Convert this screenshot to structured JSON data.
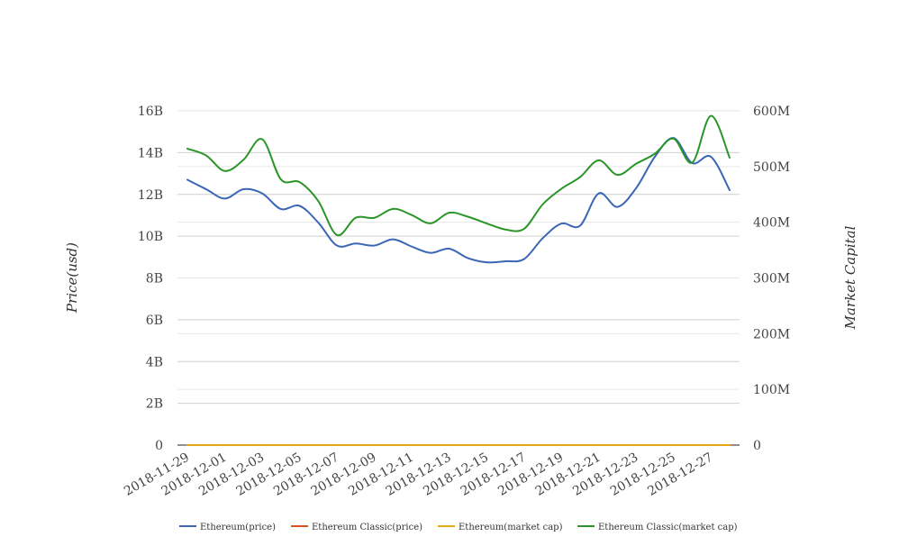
{
  "chart_data": {
    "type": "line",
    "title": "",
    "xlabel": "",
    "ylabel": "Price(usd)",
    "y2label": "Market Capital",
    "x": [
      "2018-11-29",
      "2018-11-30",
      "2018-12-01",
      "2018-12-02",
      "2018-12-03",
      "2018-12-04",
      "2018-12-05",
      "2018-12-06",
      "2018-12-07",
      "2018-12-08",
      "2018-12-09",
      "2018-12-10",
      "2018-12-11",
      "2018-12-12",
      "2018-12-13",
      "2018-12-14",
      "2018-12-15",
      "2018-12-16",
      "2018-12-17",
      "2018-12-18",
      "2018-12-19",
      "2018-12-20",
      "2018-12-21",
      "2018-12-22",
      "2018-12-23",
      "2018-12-24",
      "2018-12-25",
      "2018-12-26",
      "2018-12-27",
      "2018-12-28"
    ],
    "x_tick_labels": [
      "2018-11-29",
      "2018-12-01",
      "2018-12-03",
      "2018-12-05",
      "2018-12-07",
      "2018-12-09",
      "2018-12-11",
      "2018-12-13",
      "2018-12-15",
      "2018-12-17",
      "2018-12-19",
      "2018-12-21",
      "2018-12-23",
      "2018-12-25",
      "2018-12-27"
    ],
    "ylim": [
      0,
      16000000000
    ],
    "y_ticks": [
      0,
      2000000000,
      4000000000,
      6000000000,
      8000000000,
      10000000000,
      12000000000,
      14000000000,
      16000000000
    ],
    "y_tick_labels": [
      "0",
      "2B",
      "4B",
      "6B",
      "8B",
      "10B",
      "12B",
      "14B",
      "16B"
    ],
    "y2lim": [
      0,
      600000000
    ],
    "y2_ticks": [
      0,
      100000000,
      200000000,
      300000000,
      400000000,
      500000000,
      600000000
    ],
    "y2_tick_labels": [
      "0",
      "100M",
      "200M",
      "300M",
      "400M",
      "500M",
      "600M"
    ],
    "grid": true,
    "legend_position": "bottom",
    "series": [
      {
        "name": "Ethereum(price)",
        "axis": "left",
        "color": "#3a66b5",
        "values": [
          12700000000,
          12250000000,
          11800000000,
          12250000000,
          12050000000,
          11300000000,
          11450000000,
          10650000000,
          9550000000,
          9650000000,
          9550000000,
          9850000000,
          9500000000,
          9200000000,
          9400000000,
          8950000000,
          8750000000,
          8800000000,
          8900000000,
          9900000000,
          10600000000,
          10500000000,
          12050000000,
          11400000000,
          12300000000,
          13800000000,
          14700000000,
          13500000000,
          13800000000,
          12200000000
        ]
      },
      {
        "name": "Ethereum Classic(price)",
        "axis": "left",
        "color": "#d9531e",
        "values": [
          0,
          0,
          0,
          0,
          0,
          0,
          0,
          0,
          0,
          0,
          0,
          0,
          0,
          0,
          0,
          0,
          0,
          0,
          0,
          0,
          0,
          0,
          0,
          0,
          0,
          0,
          0,
          0,
          0,
          0
        ]
      },
      {
        "name": "Ethereum(market cap)",
        "axis": "left",
        "color": "#e6a817",
        "values": [
          0,
          0,
          0,
          0,
          0,
          0,
          0,
          0,
          0,
          0,
          0,
          0,
          0,
          0,
          0,
          0,
          0,
          0,
          0,
          0,
          0,
          0,
          0,
          0,
          0,
          0,
          0,
          0,
          0,
          0
        ]
      },
      {
        "name": "Ethereum Classic(market cap)",
        "axis": "right",
        "color": "#2a9628",
        "values": [
          532000000,
          520000000,
          492000000,
          512000000,
          549000000,
          477000000,
          472000000,
          438000000,
          377000000,
          408000000,
          408000000,
          424000000,
          413000000,
          398000000,
          417000000,
          410000000,
          398000000,
          387000000,
          388000000,
          432000000,
          460000000,
          481000000,
          511000000,
          485000000,
          505000000,
          523000000,
          550000000,
          507000000,
          591000000,
          516000000
        ]
      }
    ]
  }
}
